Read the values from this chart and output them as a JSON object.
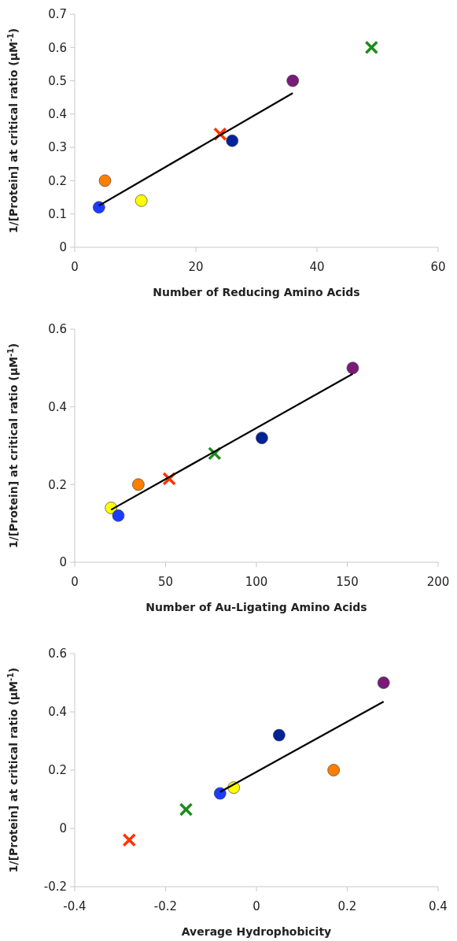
{
  "chart_data": [
    {
      "type": "scatter",
      "xlabel": "Number of Reducing Amino Acids",
      "ylabel": "1/[Protein] at critical ratio (μM$^{-1}$)",
      "xlim": [
        0,
        60
      ],
      "xticks": [
        0,
        20,
        40,
        60
      ],
      "ylim": [
        0,
        0.7
      ],
      "yticks": [
        0,
        0.1,
        0.2,
        0.3,
        0.4,
        0.5,
        0.6,
        0.7
      ],
      "series": [
        {
          "marker": "circle",
          "x": [
            4,
            5,
            11,
            26,
            36
          ],
          "values": [
            0.12,
            0.2,
            0.14,
            0.32,
            0.5
          ],
          "colors": [
            "#1a3cff",
            "#ff7f00",
            "#ffff00",
            "#002299",
            "#7a1a7a"
          ]
        },
        {
          "marker": "cross",
          "x": [
            24,
            49
          ],
          "values": [
            0.34,
            0.6
          ],
          "colors": [
            "#ff3300",
            "#1a8c1a"
          ]
        },
        {
          "type": "line",
          "marker": "none",
          "color": "#000000",
          "x": [
            4,
            36
          ],
          "values": [
            0.125,
            0.463
          ]
        }
      ]
    },
    {
      "type": "scatter",
      "xlabel": "Number of Au-Ligating Amino Acids",
      "ylabel": "1/[Protein] at critical ratio (μM$^{-1}$)",
      "xlim": [
        0,
        200
      ],
      "xticks": [
        0,
        50,
        100,
        150,
        200
      ],
      "ylim": [
        0,
        0.6
      ],
      "yticks": [
        0,
        0.2,
        0.4,
        0.6
      ],
      "series": [
        {
          "marker": "circle",
          "x": [
            20,
            24,
            35,
            103,
            153
          ],
          "values": [
            0.14,
            0.12,
            0.2,
            0.32,
            0.5
          ],
          "colors": [
            "#ffff00",
            "#1a3cff",
            "#ff7f00",
            "#002299",
            "#7a1a7a"
          ]
        },
        {
          "marker": "cross",
          "x": [
            52,
            77
          ],
          "values": [
            0.215,
            0.28
          ],
          "colors": [
            "#ff3300",
            "#1a8c1a"
          ]
        },
        {
          "type": "line",
          "marker": "none",
          "color": "#000000",
          "x": [
            20,
            153
          ],
          "values": [
            0.135,
            0.485
          ]
        }
      ]
    },
    {
      "type": "scatter",
      "xlabel": "Average Hydrophobicity",
      "ylabel": "1/[Protein] at critical ratio (μM$^{-1}$)",
      "xlim": [
        -0.4,
        0.4
      ],
      "xticks": [
        -0.4,
        -0.2,
        0,
        0.2,
        0.4
      ],
      "ylim": [
        -0.2,
        0.6
      ],
      "yticks": [
        -0.2,
        0,
        0.2,
        0.4,
        0.6
      ],
      "series": [
        {
          "marker": "circle",
          "x": [
            -0.08,
            -0.05,
            0.05,
            0.17,
            0.28
          ],
          "values": [
            0.12,
            0.14,
            0.32,
            0.2,
            0.5
          ],
          "colors": [
            "#1a3cff",
            "#ffff00",
            "#002299",
            "#ff7f00",
            "#7a1a7a"
          ]
        },
        {
          "marker": "cross",
          "x": [
            -0.28,
            -0.155
          ],
          "values": [
            -0.04,
            0.065
          ],
          "colors": [
            "#ff3300",
            "#1a8c1a"
          ]
        },
        {
          "type": "line",
          "marker": "none",
          "color": "#000000",
          "x": [
            -0.08,
            0.28
          ],
          "values": [
            0.125,
            0.435
          ]
        }
      ]
    }
  ]
}
